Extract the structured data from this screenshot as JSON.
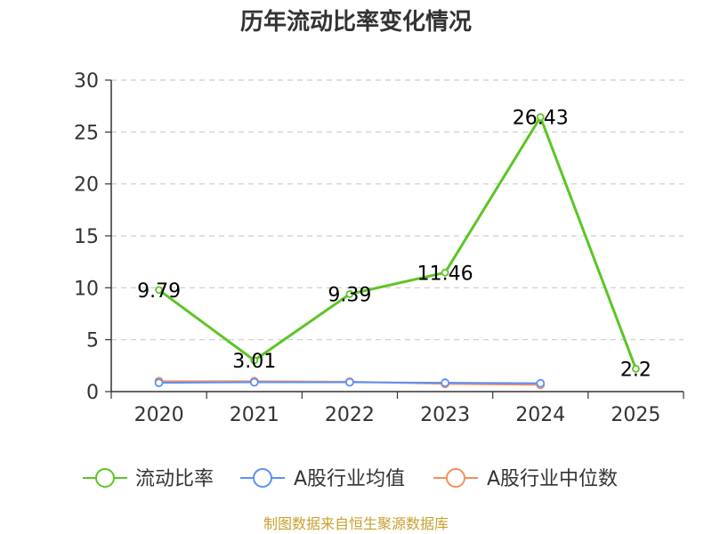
{
  "chart_data": {
    "type": "line",
    "title": "历年流动比率变化情况",
    "categories": [
      "2020",
      "2021",
      "2022",
      "2023",
      "2024",
      "2025"
    ],
    "ylim": [
      0,
      30
    ],
    "yticks": [
      "0",
      "5",
      "10",
      "15",
      "20",
      "25",
      "30"
    ],
    "grid": true,
    "legend_position": "bottom",
    "series": [
      {
        "name": "流动比率",
        "color": "#5cc524",
        "values": [
          9.79,
          3.01,
          9.39,
          11.46,
          26.43,
          2.2
        ],
        "labels": [
          "9.79",
          "3.01",
          "9.39",
          "11.46",
          "26.43",
          "2.2"
        ]
      },
      {
        "name": "A股行业均值",
        "color": "#5b8ff9",
        "values": [
          0.85,
          0.9,
          0.9,
          0.85,
          0.8,
          null
        ]
      },
      {
        "name": "A股行业中位数",
        "color": "#f4905b",
        "values": [
          1.0,
          1.0,
          0.95,
          0.75,
          0.65,
          null
        ]
      }
    ],
    "source": "制图数据来自恒生聚源数据库"
  }
}
